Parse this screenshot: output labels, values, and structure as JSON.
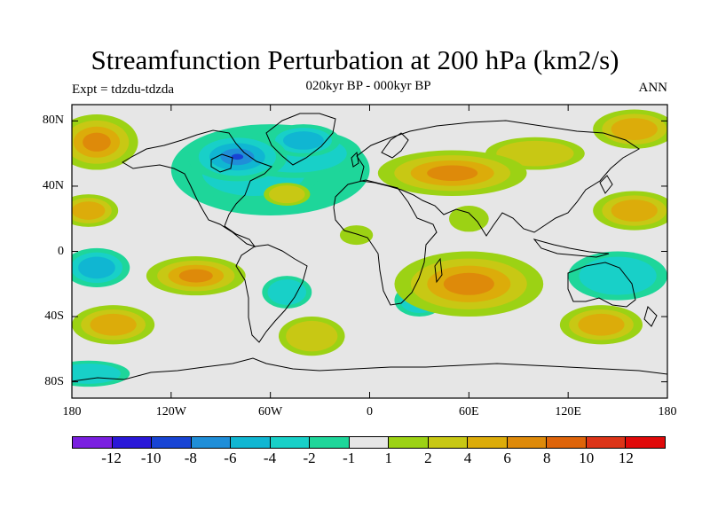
{
  "title": "Streamfunction Perturbation at 200 hPa (km2/s)",
  "subtitle": "020kyr BP - 000kyr BP",
  "left_label": "Expt = tdzdu-tdzda",
  "right_label": "ANN",
  "map": {
    "projection": "cylindrical equidistant",
    "lon_range": [
      -180,
      180
    ],
    "lat_range": [
      -90,
      90
    ],
    "y_ticks": [
      {
        "lat": 80,
        "label": "80N"
      },
      {
        "lat": 40,
        "label": "40N"
      },
      {
        "lat": 0,
        "label": "0"
      },
      {
        "lat": -40,
        "label": "40S"
      },
      {
        "lat": -80,
        "label": "80S"
      }
    ],
    "x_ticks": [
      {
        "lon": -180,
        "label": "180"
      },
      {
        "lon": -120,
        "label": "120W"
      },
      {
        "lon": -60,
        "label": "60W"
      },
      {
        "lon": 0,
        "label": "0"
      },
      {
        "lon": 60,
        "label": "60E"
      },
      {
        "lon": 120,
        "label": "120E"
      },
      {
        "lon": 180,
        "label": "180"
      }
    ]
  },
  "colorbar": {
    "colors": [
      "#7a1fe0",
      "#2a18d8",
      "#1844d4",
      "#1f8ed8",
      "#10b6d2",
      "#18d0c8",
      "#1ed69a",
      "#e6e6e6",
      "#9cd214",
      "#c8c814",
      "#dcac0a",
      "#de8a0a",
      "#de640a",
      "#dc3418",
      "#e00a0a"
    ],
    "labels": [
      "-12",
      "-10",
      "-8",
      "-6",
      "-4",
      "-2",
      "-1",
      "1",
      "2",
      "4",
      "6",
      "8",
      "10",
      "12"
    ]
  },
  "anomalies": [
    {
      "name": "north-america-trough",
      "lon": -80,
      "lat": 58,
      "rlon": 30,
      "rlat": 15,
      "level": -8
    },
    {
      "name": "north-atlantic-trough",
      "lon": -40,
      "lat": 68,
      "rlon": 22,
      "rlat": 10,
      "level": -4
    },
    {
      "name": "north-america-trough-fringe",
      "lon": -70,
      "lat": 48,
      "rlon": 40,
      "rlat": 18,
      "level": -2
    },
    {
      "name": "atlantic-trough-extension",
      "lon": -45,
      "lat": 60,
      "rlon": 40,
      "rlat": 15,
      "level": -2
    },
    {
      "name": "north-atlantic-broad-trough",
      "lon": -60,
      "lat": 50,
      "rlon": 60,
      "rlat": 28,
      "level": -1
    },
    {
      "name": "eurasia-ridge",
      "lon": 50,
      "lat": 48,
      "rlon": 45,
      "rlat": 14,
      "level": 6
    },
    {
      "name": "eurasia-ridge-east",
      "lon": 100,
      "lat": 60,
      "rlon": 30,
      "rlat": 10,
      "level": 2
    },
    {
      "name": "alaska-pacific-ridge",
      "lon": -165,
      "lat": 67,
      "rlon": 25,
      "rlat": 17,
      "level": 6
    },
    {
      "name": "arctic-ridge-east",
      "lon": 160,
      "lat": 75,
      "rlon": 25,
      "rlat": 12,
      "level": 4
    },
    {
      "name": "north-pacific-subtropical-ridge",
      "lon": 160,
      "lat": 25,
      "rlon": 25,
      "rlat": 12,
      "level": 4
    },
    {
      "name": "east-pacific-subtropical-ridge",
      "lon": -170,
      "lat": 25,
      "rlon": 18,
      "rlat": 10,
      "level": 4
    },
    {
      "name": "central-atlantic-ridge",
      "lon": -50,
      "lat": 35,
      "rlon": 14,
      "rlat": 7,
      "level": 2
    },
    {
      "name": "west-africa-ridge",
      "lon": -8,
      "lat": 10,
      "rlon": 10,
      "rlat": 6,
      "level": 1
    },
    {
      "name": "arabian-ridge",
      "lon": 60,
      "lat": 20,
      "rlon": 12,
      "rlat": 8,
      "level": 1
    },
    {
      "name": "south-indian-ridge",
      "lon": 60,
      "lat": -20,
      "rlon": 45,
      "rlat": 20,
      "level": 6
    },
    {
      "name": "south-pacific-ridge",
      "lon": -105,
      "lat": -15,
      "rlon": 30,
      "rlat": 12,
      "level": 6
    },
    {
      "name": "south-atlantic-ridge",
      "lon": -35,
      "lat": -52,
      "rlon": 20,
      "rlat": 12,
      "level": 2
    },
    {
      "name": "southern-ocean-ridge-west",
      "lon": -155,
      "lat": -45,
      "rlon": 25,
      "rlat": 12,
      "level": 4
    },
    {
      "name": "southern-ocean-ridge-east",
      "lon": 140,
      "lat": -45,
      "rlon": 25,
      "rlat": 12,
      "level": 4
    },
    {
      "name": "tropical-east-pacific-trough",
      "lon": -165,
      "lat": -10,
      "rlon": 20,
      "rlat": 12,
      "level": -4
    },
    {
      "name": "south-america-trough",
      "lon": -50,
      "lat": -25,
      "rlon": 15,
      "rlat": 10,
      "level": -2
    },
    {
      "name": "south-indian-trough",
      "lon": 30,
      "lat": -30,
      "rlon": 15,
      "rlat": 10,
      "level": -2
    },
    {
      "name": "west-pacific-trough",
      "lon": 150,
      "lat": -15,
      "rlon": 30,
      "rlat": 15,
      "level": -2
    },
    {
      "name": "antarctic-trough",
      "lon": -170,
      "lat": -75,
      "rlon": 25,
      "rlat": 8,
      "level": -2
    }
  ]
}
